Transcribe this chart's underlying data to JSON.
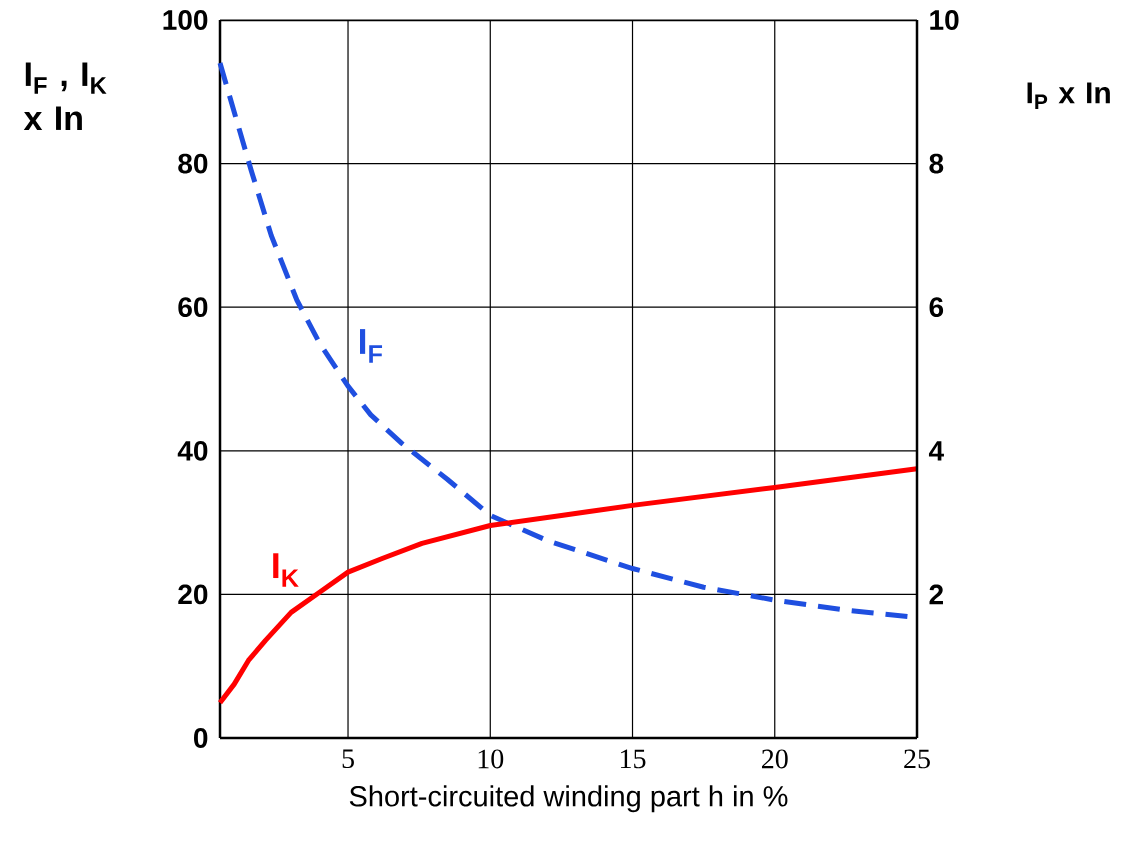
{
  "chart_data": {
    "type": "line",
    "xlabel": "Short-circuited winding part h in %",
    "ylabel": "I$_{F}$ , I$_{K}$ x In",
    "y2label": "I$_{P}$ x In",
    "xlim": [
      0.5,
      25
    ],
    "xticks": [
      5,
      10,
      15,
      20,
      25
    ],
    "ylim": [
      0,
      100
    ],
    "yticks": [
      0,
      20,
      40,
      60,
      80,
      100
    ],
    "y2lim": [
      0,
      10
    ],
    "y2ticks": [
      2,
      4,
      6,
      8,
      10
    ],
    "grid": true,
    "marker": "none",
    "series": [
      {
        "name": "I$_{F}$",
        "color": "#1f4fe0",
        "line_style": "dashed",
        "x": [
          0.5,
          1.6,
          2.3,
          3.2,
          4.0,
          5.0,
          5.8,
          6.9,
          8.5,
          10,
          12,
          15,
          17.5,
          20,
          22.5,
          25
        ],
        "values": [
          94,
          79,
          70,
          61,
          55,
          49,
          45,
          41,
          36,
          31,
          27.5,
          23.6,
          21,
          19.2,
          17.8,
          16.8
        ]
      },
      {
        "name": "I$_{K}$",
        "color": "#ff0000",
        "line_style": "solid",
        "x": [
          0.5,
          1.0,
          1.5,
          2.1,
          3.0,
          4.0,
          5.0,
          6.2,
          7.6,
          10,
          12.5,
          15,
          20,
          25
        ],
        "values": [
          4.9,
          7.5,
          10.8,
          13.6,
          17.5,
          20.3,
          23.1,
          25.0,
          27.1,
          29.6,
          31.0,
          32.4,
          34.9,
          37.5
        ]
      }
    ]
  }
}
